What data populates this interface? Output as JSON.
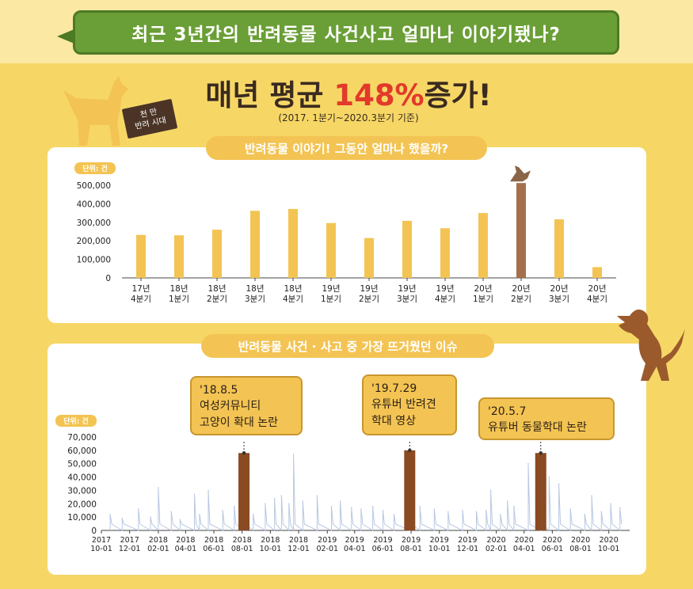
{
  "banner": {
    "title": "최근 3년간의 반려동물 사건사고 얼마나 이야기됐나?"
  },
  "headline": {
    "prefix": "매년 평균 ",
    "accent": "148%",
    "suffix": "증가!",
    "sub": "(2017. 1분기~2020.3분기 기준)"
  },
  "badge": {
    "line1": "천 만",
    "line2": "반려 시대"
  },
  "colors": {
    "bar": "#f3c453",
    "highlight": "#a4704b",
    "line": "#b8c8e2",
    "event": "#8a4a22",
    "axis": "#444444"
  },
  "chart_data": [
    {
      "type": "bar",
      "title": "반려동물 이야기! 그동안 얼마나 했을까?",
      "unit_label": "단위: 건",
      "categories": [
        [
          "17년",
          "4분기"
        ],
        [
          "18년",
          "1분기"
        ],
        [
          "18년",
          "2분기"
        ],
        [
          "18년",
          "3분기"
        ],
        [
          "18년",
          "4분기"
        ],
        [
          "19년",
          "1분기"
        ],
        [
          "19년",
          "2분기"
        ],
        [
          "19년",
          "3분기"
        ],
        [
          "19년",
          "4분기"
        ],
        [
          "20년",
          "1분기"
        ],
        [
          "20년",
          "2분기"
        ],
        [
          "20년",
          "3분기"
        ],
        [
          "20년",
          "4분기"
        ]
      ],
      "values": [
        232000,
        230000,
        260000,
        362000,
        372000,
        296000,
        215000,
        308000,
        268000,
        350000,
        512000,
        316000,
        58000
      ],
      "highlight_index": 10,
      "ylim": [
        0,
        500000
      ],
      "yticks": [
        0,
        100000,
        200000,
        300000,
        400000,
        500000
      ],
      "ytick_labels": [
        "0",
        "100,000",
        "200,000",
        "300,000",
        "400,000",
        "500,000"
      ]
    },
    {
      "type": "line",
      "title": "반려동물 사건 · 사고 중 가장 뜨거웠던 이슈",
      "unit_label": "단위: 건",
      "x_range": [
        "2017-10-01",
        "2020-11-15"
      ],
      "ylim": [
        0,
        70000
      ],
      "yticks": [
        0,
        10000,
        20000,
        30000,
        40000,
        50000,
        60000,
        70000
      ],
      "ytick_labels": [
        "0",
        "10,000",
        "20,000",
        "30,000",
        "40,000",
        "50,000",
        "60,000",
        "70,000"
      ],
      "xticks": [
        [
          "2017",
          "10-01"
        ],
        [
          "2017",
          "12-01"
        ],
        [
          "2018",
          "02-01"
        ],
        [
          "2018",
          "04-01"
        ],
        [
          "2018",
          "06-01"
        ],
        [
          "2018",
          "08-01"
        ],
        [
          "2018",
          "10-01"
        ],
        [
          "2018",
          "12-01"
        ],
        [
          "2019",
          "02-01"
        ],
        [
          "2019",
          "04-01"
        ],
        [
          "2019",
          "06-01"
        ],
        [
          "2019",
          "08-01"
        ],
        [
          "2019",
          "10-01"
        ],
        [
          "2019",
          "12-01"
        ],
        [
          "2020",
          "02-01"
        ],
        [
          "2020",
          "04-01"
        ],
        [
          "2020",
          "06-01"
        ],
        [
          "2020",
          "08-01"
        ],
        [
          "2020",
          "10-01"
        ]
      ],
      "xtick_dates": [
        "2017-10-01",
        "2017-12-01",
        "2018-02-01",
        "2018-04-01",
        "2018-06-01",
        "2018-08-01",
        "2018-10-01",
        "2018-12-01",
        "2019-02-01",
        "2019-04-01",
        "2019-06-01",
        "2019-08-01",
        "2019-10-01",
        "2019-12-01",
        "2020-02-01",
        "2020-04-01",
        "2020-06-01",
        "2020-08-01",
        "2020-10-01"
      ],
      "series": [
        {
          "x": [
            "2017-10-20",
            "2017-11-15",
            "2017-12-20",
            "2018-01-15",
            "2018-02-01",
            "2018-03-01",
            "2018-03-20",
            "2018-04-20",
            "2018-05-01",
            "2018-05-20",
            "2018-06-20",
            "2018-07-15",
            "2018-08-05",
            "2018-08-25",
            "2018-09-20",
            "2018-10-10",
            "2018-10-25",
            "2018-11-10",
            "2018-11-20",
            "2018-12-10",
            "2019-01-10",
            "2019-02-10",
            "2019-03-01",
            "2019-03-25",
            "2019-04-15",
            "2019-05-10",
            "2019-06-01",
            "2019-06-25",
            "2019-07-29",
            "2019-08-20",
            "2019-09-20",
            "2019-10-20",
            "2019-11-20",
            "2019-12-20",
            "2020-01-10",
            "2020-01-20",
            "2020-02-10",
            "2020-02-25",
            "2020-03-10",
            "2020-04-10",
            "2020-05-07",
            "2020-05-25",
            "2020-06-15",
            "2020-07-10",
            "2020-08-10",
            "2020-08-25",
            "2020-09-15",
            "2020-10-05",
            "2020-10-25"
          ],
          "y": [
            12000,
            9000,
            16000,
            10000,
            32000,
            14000,
            8000,
            27000,
            12000,
            30000,
            15000,
            18000,
            58000,
            12000,
            20000,
            24000,
            26000,
            20000,
            57000,
            22000,
            26000,
            18000,
            22000,
            17000,
            16000,
            18000,
            15000,
            12000,
            60000,
            18000,
            16000,
            14000,
            15000,
            14000,
            15000,
            30000,
            12000,
            22000,
            18000,
            50000,
            58000,
            40000,
            35000,
            16000,
            12000,
            26000,
            14000,
            20000,
            17000
          ]
        }
      ],
      "events": [
        {
          "date": "2018-08-05",
          "value": 58000,
          "label": "'18.8.5",
          "text1": "여성커뮤니티",
          "text2": "고양이 확대 논란"
        },
        {
          "date": "2019-07-29",
          "value": 60000,
          "label": "'19.7.29",
          "text1": "유튜버 반려견",
          "text2": "학대 영상"
        },
        {
          "date": "2020-05-07",
          "value": 58000,
          "label": "'20.5.7",
          "text1": "유튜버 동물학대 논란",
          "text2": ""
        }
      ]
    }
  ]
}
